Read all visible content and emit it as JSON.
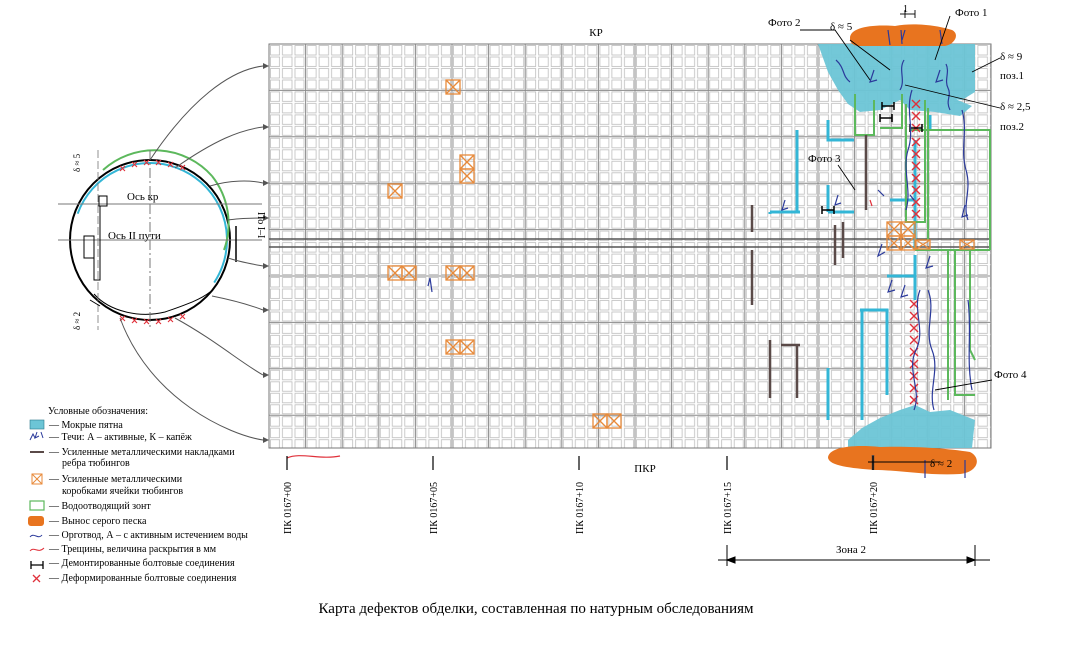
{
  "labels": {
    "top": "КР",
    "bottom": "ПКР",
    "axis_kr": "Ось кр",
    "axis_track": "Ось II пути",
    "section": "По I–I",
    "zone": "Зона 2"
  },
  "deltas": {
    "ring_top": "δ ≈ 5",
    "ring_bottom": "δ ≈ 2",
    "map_top": "δ ≈ 5",
    "map_right_1": "δ ≈ 9",
    "map_right_2": "δ ≈ 2,5",
    "map_bottom": "δ ≈ 2",
    "small_scale": "1"
  },
  "positions": {
    "pos1": "поз.1",
    "pos2": "поз.2"
  },
  "photos": {
    "p1": "Фото 1",
    "p2": "Фото 2",
    "p3": "Фото 3",
    "p4": "Фото 4"
  },
  "stations": [
    "ПК 0167+00",
    "ПК 0167+05",
    "ПК 0167+10",
    "ПК 0167+15",
    "ПК 0167+20"
  ],
  "legend": {
    "title": "Условные обозначения:",
    "items": [
      {
        "line1": "— Мокрые пятна"
      },
      {
        "line1": "— Течи: А – активные, К – капёж"
      },
      {
        "line1": "— Усиленные металлическими накладками",
        "line2": "ребра тюбингов"
      },
      {
        "line1": "— Усиленные металлическими",
        "line2": "коробками ячейки тюбингов"
      },
      {
        "line1": "— Водоотводящий зонт"
      },
      {
        "line1": "— Вынос серого песка"
      },
      {
        "line1": "— Орготвод, А – с активным истечением воды"
      },
      {
        "line1": "— Трещины, величина раскрытия в мм"
      },
      {
        "line1": "— Демонтированные болтовые соединения"
      },
      {
        "line1": "— Деформированные болтовые соединения"
      }
    ]
  },
  "caption": "Карта дефектов обделки, составленная по натурным обследованиям",
  "colors": {
    "wet": "#6cc5d6",
    "sand": "#e8741f",
    "umbrella": "#5cb85c",
    "crack": "#2b3a9b",
    "bolt_deformed": "#e0303a",
    "grid": "#b9b9b9",
    "box": "#e88a3a",
    "blue_band": "#33b6d6",
    "rib": "#5a4a48"
  }
}
